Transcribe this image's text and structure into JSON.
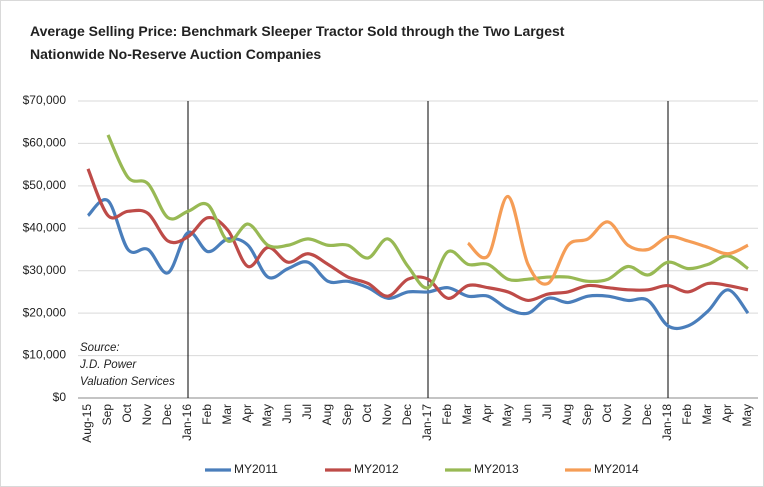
{
  "chart_data": {
    "type": "line",
    "title": [
      "Average Selling Price: Benchmark Sleeper Tractor Sold through the Two Largest",
      "Nationwide No-Reserve Auction Companies"
    ],
    "annotation": [
      "Source:",
      "J.D. Power",
      "Valuation Services"
    ],
    "categories": [
      "Aug-15",
      "Sep",
      "Oct",
      "Nov",
      "Dec",
      "Jan-16",
      "Feb",
      "Mar",
      "Apr",
      "May",
      "Jun",
      "Jul",
      "Aug",
      "Sep",
      "Oct",
      "Nov",
      "Dec",
      "Jan-17",
      "Feb",
      "Mar",
      "Apr",
      "May",
      "Jun",
      "Jul",
      "Aug",
      "Sep",
      "Oct",
      "Nov",
      "Dec",
      "Jan-18",
      "Feb",
      "Mar",
      "Apr",
      "May"
    ],
    "series": [
      {
        "name": "MY2011",
        "color": "#4a7ebb",
        "values": [
          43000,
          46500,
          35000,
          35000,
          29500,
          39000,
          34500,
          37500,
          36000,
          28500,
          30500,
          32000,
          27500,
          27500,
          26000,
          23500,
          25000,
          25000,
          26000,
          24000,
          24000,
          21000,
          20000,
          23500,
          22500,
          24000,
          24000,
          23000,
          23000,
          17000,
          17000,
          20500,
          25500,
          20000
        ]
      },
      {
        "name": "MY2012",
        "color": "#be4b48",
        "values": [
          54000,
          43000,
          44000,
          43500,
          37000,
          38000,
          42500,
          39500,
          31000,
          35500,
          32000,
          34000,
          31500,
          28500,
          27000,
          24000,
          28000,
          28000,
          23500,
          26500,
          26000,
          25000,
          23000,
          24500,
          25000,
          26500,
          26000,
          25500,
          25500,
          26500,
          25000,
          27000,
          26500,
          25500
        ]
      },
      {
        "name": "MY2013",
        "color": "#98b954",
        "values": [
          null,
          62000,
          52000,
          50500,
          42500,
          44000,
          45500,
          37000,
          41000,
          36000,
          36000,
          37500,
          36000,
          36000,
          33000,
          37500,
          31000,
          26000,
          34500,
          31500,
          31500,
          28000,
          28000,
          28500,
          28500,
          27500,
          28000,
          31000,
          29000,
          32000,
          30500,
          31500,
          33500,
          30500
        ]
      },
      {
        "name": "MY2014",
        "color": "#f59d56",
        "values": [
          null,
          null,
          null,
          null,
          null,
          null,
          null,
          null,
          null,
          null,
          null,
          null,
          null,
          null,
          null,
          null,
          null,
          null,
          null,
          36500,
          33500,
          47500,
          31500,
          27000,
          36000,
          37500,
          41500,
          36000,
          35000,
          38000,
          37000,
          35500,
          34000,
          36000
        ]
      }
    ],
    "reference_lines": [
      "Jan-16",
      "Jan-17",
      "Jan-18"
    ],
    "ylim": [
      0,
      70000
    ],
    "yticks": [
      {
        "value": 0,
        "label": "$0"
      },
      {
        "value": 10000,
        "label": "$10,000"
      },
      {
        "value": 20000,
        "label": "$20,000"
      },
      {
        "value": 30000,
        "label": "$30,000"
      },
      {
        "value": 40000,
        "label": "$40,000"
      },
      {
        "value": 50000,
        "label": "$50,000"
      },
      {
        "value": 60000,
        "label": "$60,000"
      },
      {
        "value": 70000,
        "label": "$70,000"
      }
    ],
    "grid": true,
    "legend": "bottom"
  }
}
